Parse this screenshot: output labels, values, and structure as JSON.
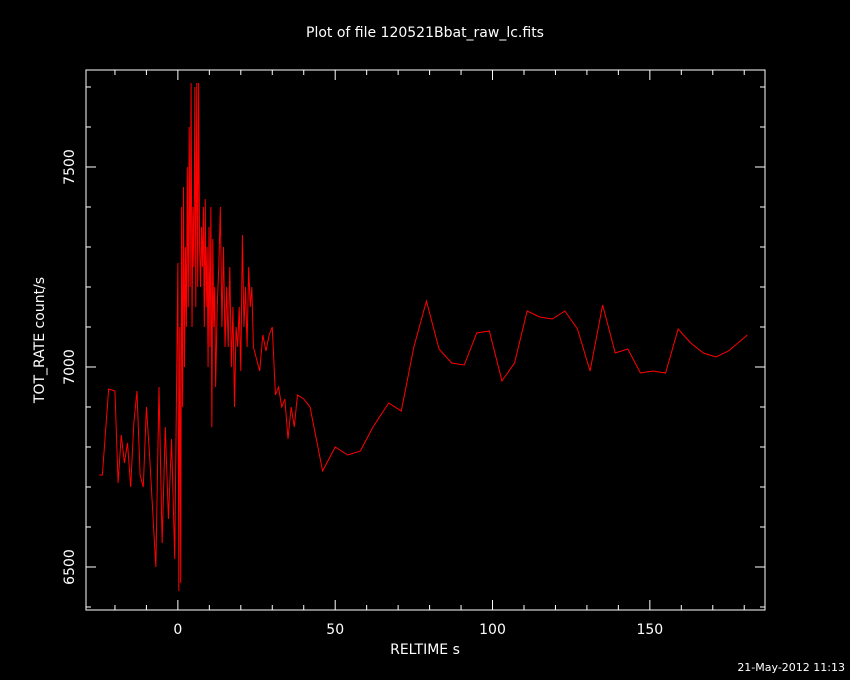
{
  "chart_data": {
    "type": "line",
    "title": "Plot of file 120521Bbat_raw_lc.fits",
    "x_label": "RELTIME  s",
    "y_label": "TOT_RATE  count/s",
    "timestamp": "21-May-2012 11:13",
    "xlim": [
      -29.2,
      186.6
    ],
    "ylim": [
      6392.5,
      7742.5
    ],
    "xticks": [
      0,
      50,
      100,
      150
    ],
    "yticks": [
      6500,
      7000,
      7500
    ],
    "xminorticks": [
      -20,
      -10,
      10,
      20,
      30,
      40,
      60,
      70,
      80,
      90,
      110,
      120,
      130,
      140,
      160,
      170,
      180
    ],
    "yminorticks": [
      6400,
      6600,
      6700,
      6800,
      6900,
      7100,
      7200,
      7300,
      7400,
      7600,
      7700
    ],
    "series": [
      {
        "name": "TOT_RATE",
        "color": "#ff0000",
        "x": [
          -25,
          -24,
          -22,
          -20,
          -19,
          -18,
          -17,
          -16,
          -15,
          -14,
          -13,
          -12,
          -11,
          -10,
          -9,
          -8,
          -7,
          -6,
          -5,
          -4,
          -3,
          -2,
          -1,
          0,
          0.3,
          0.6,
          0.9,
          1.2,
          1.5,
          1.8,
          2.1,
          2.4,
          2.7,
          3,
          3.3,
          3.6,
          3.9,
          4.2,
          4.5,
          4.8,
          5.1,
          5.4,
          5.7,
          6,
          6.3,
          6.6,
          6.9,
          7.2,
          7.5,
          7.8,
          8.1,
          8.4,
          8.7,
          9,
          9.3,
          9.6,
          9.9,
          10.2,
          10.5,
          10.8,
          11.1,
          11.4,
          11.7,
          12,
          12.5,
          13,
          13.5,
          14,
          14.5,
          15,
          15.5,
          16,
          16.5,
          17,
          17.5,
          18,
          18.5,
          19,
          19.5,
          20,
          20.5,
          21,
          21.5,
          22,
          22.5,
          23,
          23.5,
          24,
          25,
          26,
          27,
          28,
          29,
          30,
          31,
          32,
          33,
          34,
          35,
          36,
          37,
          38,
          40,
          42,
          46,
          50,
          54,
          58,
          62,
          67,
          71,
          75,
          79,
          83,
          87,
          91,
          95,
          99,
          103,
          107,
          111,
          115,
          119,
          123,
          127,
          131,
          135,
          139,
          143,
          147,
          151,
          155,
          159,
          163,
          167,
          171,
          175,
          181
        ],
        "values": [
          6730,
          6730,
          6945,
          6940,
          6710,
          6830,
          6760,
          6810,
          6700,
          6860,
          6940,
          6730,
          6700,
          6900,
          6780,
          6640,
          6500,
          6950,
          6560,
          6850,
          6620,
          6820,
          6520,
          7260,
          6440,
          7100,
          6460,
          7400,
          6900,
          7450,
          7000,
          7300,
          7100,
          7500,
          7150,
          7600,
          7200,
          7710,
          7100,
          7400,
          7250,
          7700,
          7150,
          7710,
          7200,
          7710,
          7300,
          7200,
          7350,
          7250,
          7400,
          7100,
          7420,
          7150,
          7300,
          7000,
          7350,
          7050,
          7400,
          6850,
          7320,
          7100,
          7200,
          6950,
          7150,
          7250,
          7400,
          7100,
          7300,
          7050,
          7200,
          7050,
          7250,
          7000,
          7150,
          6900,
          7100,
          7050,
          7150,
          6990,
          7330,
          7100,
          7200,
          7050,
          7250,
          7150,
          7200,
          7050,
          7020,
          6990,
          7080,
          7040,
          7080,
          7100,
          6930,
          6950,
          6900,
          6920,
          6820,
          6900,
          6850,
          6930,
          6920,
          6900,
          6740,
          6800,
          6780,
          6790,
          6850,
          6910,
          6890,
          7050,
          7165,
          7045,
          7010,
          7005,
          7085,
          7090,
          6965,
          7010,
          7140,
          7125,
          7120,
          7140,
          7095,
          6990,
          7155,
          7035,
          7045,
          6985,
          6990,
          6985,
          7095,
          7060,
          7035,
          7025,
          7040,
          7080
        ]
      }
    ]
  }
}
